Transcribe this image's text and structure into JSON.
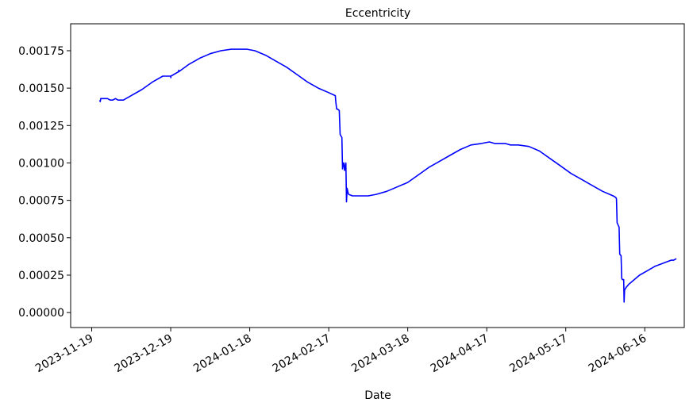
{
  "chart_data": {
    "type": "line",
    "title": "Eccentricity",
    "xlabel": "Date",
    "ylabel": "",
    "grid": false,
    "legend": "none",
    "x_ticks": [
      "2023-11-19",
      "2023-12-19",
      "2024-01-18",
      "2024-02-17",
      "2024-03-18",
      "2024-04-17",
      "2024-05-17",
      "2024-06-16"
    ],
    "y_ticks": [
      "0.00000",
      "0.00025",
      "0.00050",
      "0.00075",
      "0.00100",
      "0.00125",
      "0.00150",
      "0.00175"
    ],
    "xlim": [
      "2023-11-11",
      "2024-07-01"
    ],
    "ylim": [
      -0.0001,
      0.00193
    ],
    "series": [
      {
        "color": "#0000ff",
        "x": [
          "2023-11-22T00:00",
          "2023-11-22T06:00",
          "2023-11-22T10:00",
          "2023-11-23T00:00",
          "2023-11-24T00:00",
          "2023-11-25T00:00",
          "2023-11-26T00:00",
          "2023-11-27T00:00",
          "2023-11-28T00:00",
          "2023-11-29T00:00",
          "2023-12-01T00:00",
          "2023-12-04T00:00",
          "2023-12-08T00:00",
          "2023-12-12T00:00",
          "2023-12-16T00:00",
          "2023-12-19T00:00",
          "2023-12-19T01:00",
          "2023-12-19T02:00",
          "2023-12-22T00:00",
          "2023-12-22T01:00",
          "2023-12-22T02:00",
          "2023-12-26T00:00",
          "2023-12-30T00:00",
          "2024-01-03T00:00",
          "2024-01-07T00:00",
          "2024-01-11T00:00",
          "2024-01-14T00:00",
          "2024-01-17T00:00",
          "2024-01-20T00:00",
          "2024-01-24T00:00",
          "2024-01-28T00:00",
          "2024-02-01T00:00",
          "2024-02-05T00:00",
          "2024-02-09T00:00",
          "2024-02-13T00:00",
          "2024-02-17T00:00",
          "2024-02-19T12:00",
          "2024-02-19T16:00",
          "2024-02-20T00:00",
          "2024-02-20T08:00",
          "2024-02-21T00:00",
          "2024-02-21T08:00",
          "2024-02-21T16:00",
          "2024-02-22T00:00",
          "2024-02-22T06:00",
          "2024-02-22T12:00",
          "2024-02-22T18:00",
          "2024-02-23T00:00",
          "2024-02-23T12:00",
          "2024-02-23T18:00",
          "2024-02-24T00:00",
          "2024-02-24T08:00",
          "2024-02-24T14:00",
          "2024-02-26T00:00",
          "2024-02-29T00:00",
          "2024-03-03T00:00",
          "2024-03-06T00:00",
          "2024-03-10T00:00",
          "2024-03-14T00:00",
          "2024-03-18T00:00",
          "2024-03-22T00:00",
          "2024-03-26T00:00",
          "2024-03-30T00:00",
          "2024-04-03T00:00",
          "2024-04-07T00:00",
          "2024-04-11T00:00",
          "2024-04-15T00:00",
          "2024-04-18T00:00",
          "2024-04-20T00:00",
          "2024-04-22T00:00",
          "2024-04-24T00:00",
          "2024-04-26T00:00",
          "2024-04-29T00:00",
          "2024-05-03T00:00",
          "2024-05-07T00:00",
          "2024-05-11T00:00",
          "2024-05-15T00:00",
          "2024-05-19T00:00",
          "2024-05-23T00:00",
          "2024-05-27T00:00",
          "2024-05-31T00:00",
          "2024-06-04T00:00",
          "2024-06-05T00:00",
          "2024-06-05T06:00",
          "2024-06-05T12:00",
          "2024-06-06T00:00",
          "2024-06-06T06:00",
          "2024-06-06T12:00",
          "2024-06-07T00:00",
          "2024-06-07T06:00",
          "2024-06-07T12:00",
          "2024-06-08T00:00",
          "2024-06-08T04:00",
          "2024-06-08T08:00",
          "2024-06-08T16:00",
          "2024-06-09T00:00",
          "2024-06-10T00:00",
          "2024-06-12T00:00",
          "2024-06-14T00:00",
          "2024-06-17T00:00",
          "2024-06-20T00:00",
          "2024-06-23T00:00",
          "2024-06-26T00:00",
          "2024-06-27T00:00",
          "2024-06-28T00:00"
        ],
        "y": [
          0.00142,
          0.00141,
          0.00143,
          0.00143,
          0.00143,
          0.00143,
          0.00142,
          0.00142,
          0.00143,
          0.00142,
          0.00142,
          0.00145,
          0.00149,
          0.00154,
          0.00158,
          0.00158,
          0.00157,
          0.00158,
          0.00161,
          0.00162,
          0.00161,
          0.00166,
          0.0017,
          0.00173,
          0.00175,
          0.00176,
          0.00176,
          0.00176,
          0.00175,
          0.00172,
          0.00168,
          0.00164,
          0.00159,
          0.00154,
          0.0015,
          0.00147,
          0.00145,
          0.00141,
          0.00136,
          0.00136,
          0.00135,
          0.00119,
          0.00118,
          0.00117,
          0.00096,
          0.001,
          0.001,
          0.00095,
          0.001,
          0.00074,
          0.00083,
          0.0008,
          0.00079,
          0.00078,
          0.00078,
          0.00078,
          0.00079,
          0.00081,
          0.00084,
          0.00087,
          0.00092,
          0.00097,
          0.00101,
          0.00105,
          0.00109,
          0.00112,
          0.00113,
          0.00114,
          0.00113,
          0.00113,
          0.00113,
          0.00112,
          0.00112,
          0.00111,
          0.00108,
          0.00103,
          0.00098,
          0.00093,
          0.00089,
          0.00085,
          0.00081,
          0.00078,
          0.00077,
          0.00076,
          0.0006,
          0.00058,
          0.00057,
          0.00039,
          0.00038,
          0.00023,
          0.00022,
          0.00022,
          7e-05,
          0.00015,
          0.00016,
          0.00017,
          0.00019,
          0.00022,
          0.00025,
          0.00028,
          0.00031,
          0.00033,
          0.00035,
          0.00035,
          0.00036
        ]
      }
    ]
  }
}
